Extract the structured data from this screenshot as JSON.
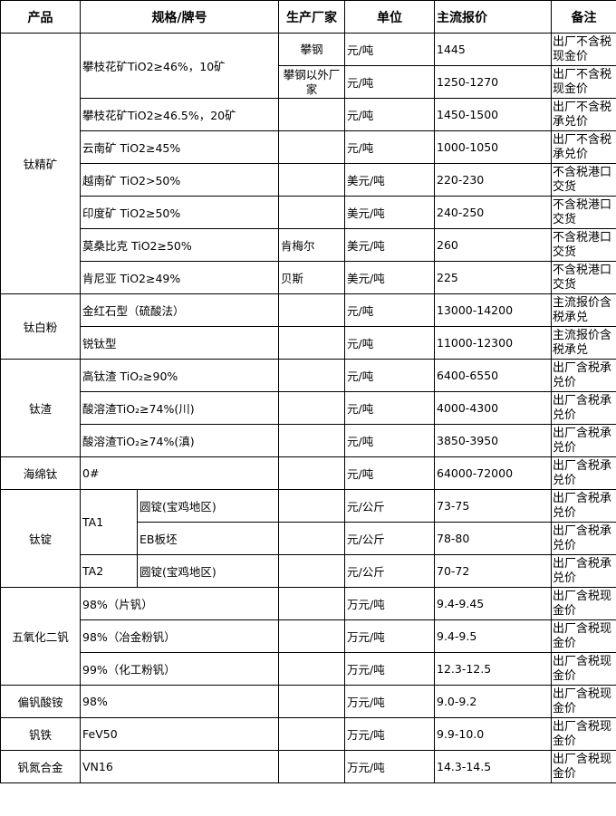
{
  "headers": {
    "product": "产品",
    "spec": "规格/牌号",
    "maker": "生产厂家",
    "unit": "单位",
    "price": "主流报价",
    "note": "备注"
  },
  "groups": [
    {
      "product": "钛精矿",
      "items": [
        {
          "spec": "攀枝花矿TiO2≥46%，10矿",
          "makers": [
            {
              "maker": "攀钢",
              "unit": "元/吨",
              "price": "1445",
              "note": "出厂不含税现金价"
            },
            {
              "maker": "攀钢以外厂家",
              "unit": "元/吨",
              "price": "1250-1270",
              "note": "出厂不含税现金价"
            }
          ]
        },
        {
          "spec": "攀枝花矿TiO2≥46.5%，20矿",
          "maker": "",
          "unit": "元/吨",
          "price": "1450-1500",
          "note": "出厂不含税承兑价"
        },
        {
          "spec": "云南矿 TiO2≥45%",
          "maker": "",
          "unit": "元/吨",
          "price": "1000-1050",
          "note": "出厂不含税承兑价"
        },
        {
          "spec": "越南矿 TiO2>50%",
          "maker": "",
          "unit": "美元/吨",
          "price": "220-230",
          "note": "不含税港口交货"
        },
        {
          "spec": "印度矿 TiO2≥50%",
          "maker": "",
          "unit": "美元/吨",
          "price": "240-250",
          "note": "不含税港口交货"
        },
        {
          "spec": "莫桑比克 TiO2≥50%",
          "maker": "肯梅尔",
          "unit": "美元/吨",
          "price": "260",
          "note": "不含税港口交货"
        },
        {
          "spec": "肯尼亚 TiO2≥49%",
          "maker": "贝斯",
          "unit": "美元/吨",
          "price": "225",
          "note": "不含税港口交货"
        }
      ]
    },
    {
      "product": "钛白粉",
      "items": [
        {
          "spec": "金红石型（硫酸法）",
          "maker": "",
          "unit": "元/吨",
          "price": "13000-14200",
          "note": "主流报价含税承兑"
        },
        {
          "spec": "锐钛型",
          "maker": "",
          "unit": "元/吨",
          "price": "11000-12300",
          "note": "主流报价含税承兑"
        }
      ]
    },
    {
      "product": "钛渣",
      "items": [
        {
          "spec": "高钛渣 TiO₂≥90%",
          "maker": "",
          "unit": "元/吨",
          "price": "6400-6550",
          "note": "出厂含税承兑价"
        },
        {
          "spec": "酸溶渣TiO₂≥74%(川)",
          "maker": "",
          "unit": "元/吨",
          "price": "4000-4300",
          "note": "出厂含税承兑价"
        },
        {
          "spec": "酸溶渣TiO₂≥74%(滇)",
          "maker": "",
          "unit": "元/吨",
          "price": "3850-3950",
          "note": "出厂含税承兑价"
        }
      ]
    },
    {
      "product": "海绵钛",
      "items": [
        {
          "spec": "0#",
          "maker": "",
          "unit": "元/吨",
          "price": "64000-72000",
          "note": "出厂含税承兑价"
        }
      ]
    },
    {
      "product": "钛锭",
      "items": [
        {
          "grade": "TA1",
          "forms": [
            {
              "form": "圆锭(宝鸡地区)",
              "maker": "",
              "unit": "元/公斤",
              "price": "73-75",
              "note": "出厂含税承兑价"
            },
            {
              "form": "EB板坯",
              "maker": "",
              "unit": "元/公斤",
              "price": "78-80",
              "note": "出厂含税承兑价"
            }
          ]
        },
        {
          "grade": "TA2",
          "forms": [
            {
              "form": "圆锭(宝鸡地区)",
              "maker": "",
              "unit": "元/公斤",
              "price": "70-72",
              "note": "出厂含税承兑价"
            }
          ]
        }
      ]
    },
    {
      "product": "五氧化二钒",
      "items": [
        {
          "spec": "98%（片钒）",
          "maker": "",
          "unit": "万元/吨",
          "price": "9.4-9.45",
          "note": "出厂含税现金价"
        },
        {
          "spec": "98%（冶金粉钒）",
          "maker": "",
          "unit": "万元/吨",
          "price": "9.4-9.5",
          "note": "出厂含税现金价"
        },
        {
          "spec": "99%（化工粉钒）",
          "maker": "",
          "unit": "万元/吨",
          "price": "12.3-12.5",
          "note": "出厂含税现金价"
        }
      ]
    },
    {
      "product": "偏钒酸铵",
      "items": [
        {
          "spec": "98%",
          "maker": "",
          "unit": "万元/吨",
          "price": "9.0-9.2",
          "note": "出厂含税现金价"
        }
      ]
    },
    {
      "product": "钒铁",
      "items": [
        {
          "spec": "FeV50",
          "maker": "",
          "unit": "万元/吨",
          "price": "9.9-10.0",
          "note": "出厂含税现金价"
        }
      ]
    },
    {
      "product": "钒氮合金",
      "items": [
        {
          "spec": "VN16",
          "maker": "",
          "unit": "万元/吨",
          "price": "14.3-14.5",
          "note": "出厂含税现金价"
        }
      ]
    }
  ]
}
